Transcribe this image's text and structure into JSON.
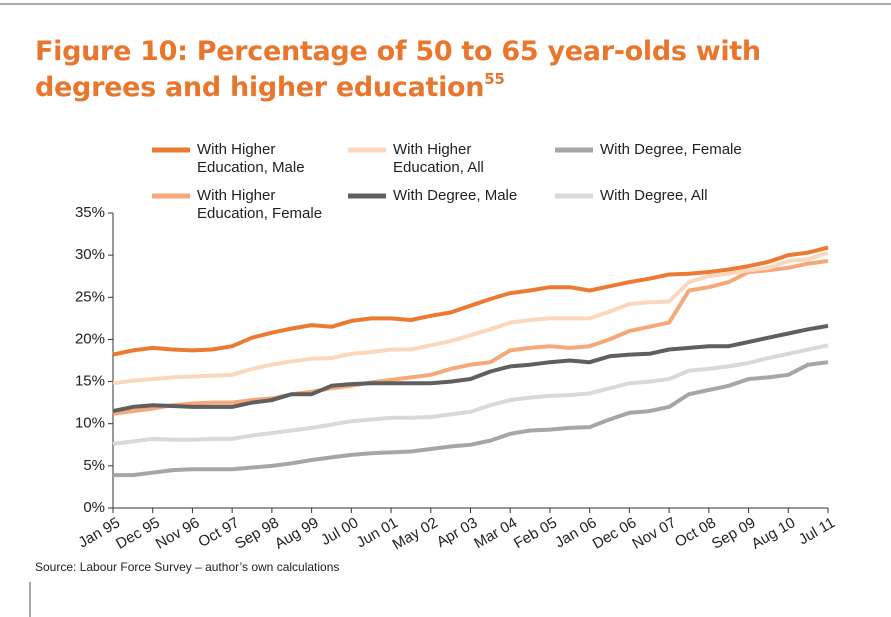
{
  "chart_data": {
    "type": "line",
    "title": "Figure 10: Percentage of 50 to 65 year-olds with degrees and higher education",
    "title_superscript": "55",
    "source": "Source: Labour Force Survey – author’s own calculations",
    "categories": [
      "Jan 95",
      null,
      "Dec 95",
      null,
      "Nov 96",
      null,
      "Oct 97",
      null,
      "Sep 98",
      null,
      "Aug 99",
      null,
      "Jul 00",
      null,
      "Jun 01",
      null,
      "May 02",
      null,
      "Apr 03",
      null,
      "Mar 04",
      null,
      "Feb 05",
      null,
      "Jan 06",
      null,
      "Dec 06",
      null,
      "Nov 07",
      null,
      "Oct 08",
      null,
      "Sep 09",
      null,
      "Aug 10",
      null,
      "Jul 11"
    ],
    "ylim": [
      0,
      35
    ],
    "yticks": [
      {
        "value": 0,
        "label": "0%"
      },
      {
        "value": 5,
        "label": "5%"
      },
      {
        "value": 10,
        "label": "10%"
      },
      {
        "value": 15,
        "label": "15%"
      },
      {
        "value": 20,
        "label": "20%"
      },
      {
        "value": 25,
        "label": "25%"
      },
      {
        "value": 30,
        "label": "30%"
      },
      {
        "value": 35,
        "label": "35%"
      }
    ],
    "series": [
      {
        "name": "With Higher Education, Male",
        "color": "#ec7a32",
        "values": [
          18.2,
          18.7,
          19.0,
          18.8,
          18.7,
          18.8,
          19.2,
          20.2,
          20.8,
          21.3,
          21.7,
          21.5,
          22.2,
          22.5,
          22.5,
          22.3,
          22.8,
          23.2,
          24.0,
          24.8,
          25.5,
          25.8,
          26.2,
          26.2,
          25.8,
          26.3,
          26.8,
          27.2,
          27.7,
          27.8,
          28.0,
          28.3,
          28.7,
          29.2,
          30.0,
          30.3,
          30.9
        ]
      },
      {
        "name": "With Higher Education, All",
        "color": "#fbd7bd",
        "values": [
          14.8,
          15.1,
          15.3,
          15.5,
          15.6,
          15.7,
          15.8,
          16.5,
          17.0,
          17.4,
          17.7,
          17.8,
          18.3,
          18.5,
          18.8,
          18.8,
          19.3,
          19.8,
          20.5,
          21.2,
          22.0,
          22.3,
          22.5,
          22.5,
          22.5,
          23.3,
          24.2,
          24.4,
          24.5,
          26.8,
          27.5,
          27.8,
          28.2,
          28.5,
          29.3,
          29.5,
          30.3
        ]
      },
      {
        "name": "With Degree, Female",
        "color": "#a6a6a6",
        "values": [
          3.9,
          3.9,
          4.2,
          4.5,
          4.6,
          4.6,
          4.6,
          4.8,
          5.0,
          5.3,
          5.7,
          6.0,
          6.3,
          6.5,
          6.6,
          6.7,
          7.0,
          7.3,
          7.5,
          8.0,
          8.8,
          9.2,
          9.3,
          9.5,
          9.6,
          10.5,
          11.3,
          11.5,
          12.0,
          13.5,
          14.0,
          14.5,
          15.3,
          15.5,
          15.8,
          17.0,
          17.3
        ]
      },
      {
        "name": "With Higher Education, Female",
        "color": "#f5a878",
        "values": [
          11.2,
          11.5,
          11.8,
          12.2,
          12.4,
          12.5,
          12.5,
          12.8,
          13.0,
          13.5,
          13.8,
          14.2,
          14.5,
          14.9,
          15.2,
          15.5,
          15.8,
          16.5,
          17.0,
          17.3,
          18.7,
          19.0,
          19.2,
          19.0,
          19.2,
          20.0,
          21.0,
          21.5,
          22.0,
          25.8,
          26.2,
          26.8,
          28.0,
          28.2,
          28.5,
          29.0,
          29.3
        ]
      },
      {
        "name": "With Degree, Male",
        "color": "#5f5f5f",
        "values": [
          11.5,
          12.0,
          12.2,
          12.1,
          12.0,
          12.0,
          12.0,
          12.5,
          12.8,
          13.5,
          13.5,
          14.5,
          14.7,
          14.8,
          14.8,
          14.8,
          14.8,
          15.0,
          15.3,
          16.2,
          16.8,
          17.0,
          17.3,
          17.5,
          17.3,
          18.0,
          18.2,
          18.3,
          18.8,
          19.0,
          19.2,
          19.2,
          19.7,
          20.2,
          20.7,
          21.2,
          21.6
        ]
      },
      {
        "name": "With Degree, All",
        "color": "#d9d9d9",
        "values": [
          7.6,
          7.9,
          8.2,
          8.1,
          8.1,
          8.2,
          8.2,
          8.6,
          8.9,
          9.2,
          9.5,
          9.9,
          10.3,
          10.5,
          10.7,
          10.7,
          10.8,
          11.1,
          11.4,
          12.2,
          12.8,
          13.1,
          13.3,
          13.4,
          13.6,
          14.2,
          14.8,
          15.0,
          15.3,
          16.3,
          16.5,
          16.8,
          17.2,
          17.8,
          18.3,
          18.8,
          19.3
        ]
      }
    ]
  }
}
